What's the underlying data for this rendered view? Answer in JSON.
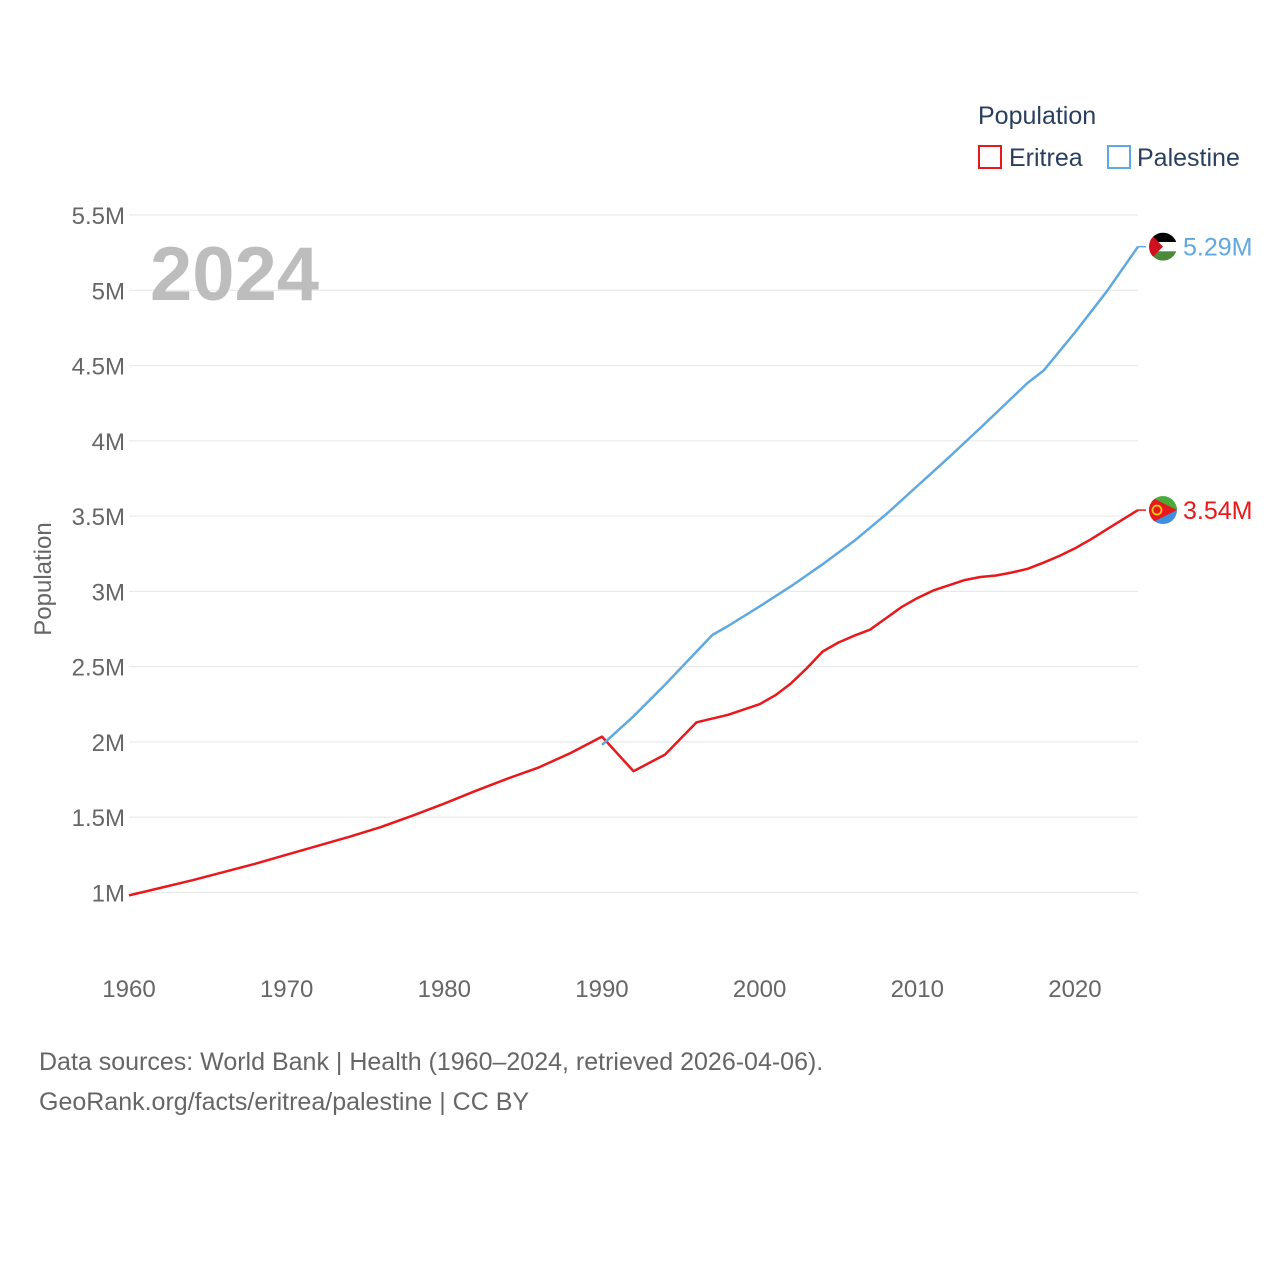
{
  "chart_data": {
    "type": "line",
    "year_label": "2024",
    "ylabel": "Population",
    "legend_title": "Population",
    "legend_position": "top-right",
    "xlim": [
      1960,
      2024
    ],
    "ylim": [
      0.75,
      5.6
    ],
    "x_ticks": [
      {
        "value": 1960,
        "label": "1960"
      },
      {
        "value": 1970,
        "label": "1970"
      },
      {
        "value": 1980,
        "label": "1980"
      },
      {
        "value": 1990,
        "label": "1990"
      },
      {
        "value": 2000,
        "label": "2000"
      },
      {
        "value": 2010,
        "label": "2010"
      },
      {
        "value": 2020,
        "label": "2020"
      }
    ],
    "y_ticks": [
      {
        "value": 1.0,
        "label": "1M"
      },
      {
        "value": 1.5,
        "label": "1.5M"
      },
      {
        "value": 2.0,
        "label": "2M"
      },
      {
        "value": 2.5,
        "label": "2.5M"
      },
      {
        "value": 3.0,
        "label": "3M"
      },
      {
        "value": 3.5,
        "label": "3.5M"
      },
      {
        "value": 4.0,
        "label": "4M"
      },
      {
        "value": 4.5,
        "label": "4.5M"
      },
      {
        "value": 5.0,
        "label": "5M"
      },
      {
        "value": 5.5,
        "label": "5.5M"
      }
    ],
    "series": [
      {
        "name": "Eritrea",
        "color": "#e8191c",
        "end_label": "3.54M",
        "flag": "eritrea-flag-icon",
        "x": [
          1960,
          1962,
          1964,
          1966,
          1968,
          1970,
          1972,
          1974,
          1976,
          1978,
          1980,
          1982,
          1984,
          1986,
          1988,
          1990,
          1992,
          1994,
          1996,
          1998,
          2000,
          2001,
          2002,
          2003,
          2004,
          2005,
          2006,
          2007,
          2008,
          2009,
          2010,
          2011,
          2012,
          2013,
          2014,
          2015,
          2016,
          2017,
          2018,
          2019,
          2020,
          2021,
          2022,
          2023,
          2024
        ],
        "values": [
          0.98,
          1.03,
          1.08,
          1.135,
          1.19,
          1.25,
          1.31,
          1.37,
          1.435,
          1.51,
          1.59,
          1.675,
          1.755,
          1.83,
          1.925,
          2.035,
          1.805,
          1.915,
          2.13,
          2.18,
          2.25,
          2.31,
          2.39,
          2.49,
          2.6,
          2.66,
          2.705,
          2.745,
          2.82,
          2.895,
          2.955,
          3.005,
          3.04,
          3.075,
          3.095,
          3.105,
          3.125,
          3.15,
          3.19,
          3.235,
          3.285,
          3.345,
          3.41,
          3.475,
          3.54
        ]
      },
      {
        "name": "Palestine",
        "color": "#5fa8e0",
        "end_label": "5.29M",
        "flag": "palestine-flag-icon",
        "x": [
          1990,
          1992,
          1994,
          1996,
          1997,
          1998,
          2000,
          2002,
          2004,
          2006,
          2008,
          2010,
          2012,
          2014,
          2016,
          2017,
          2018,
          2020,
          2022,
          2024
        ],
        "values": [
          1.98,
          2.17,
          2.38,
          2.6,
          2.71,
          2.77,
          2.9,
          3.035,
          3.18,
          3.335,
          3.51,
          3.7,
          3.89,
          4.085,
          4.285,
          4.385,
          4.465,
          4.72,
          4.99,
          5.29
        ]
      }
    ]
  },
  "footer": {
    "line1": "Data sources: World Bank | Health (1960–2024, retrieved 2026-04-06).",
    "line2": "GeoRank.org/facts/eritrea/palestine | CC BY"
  }
}
